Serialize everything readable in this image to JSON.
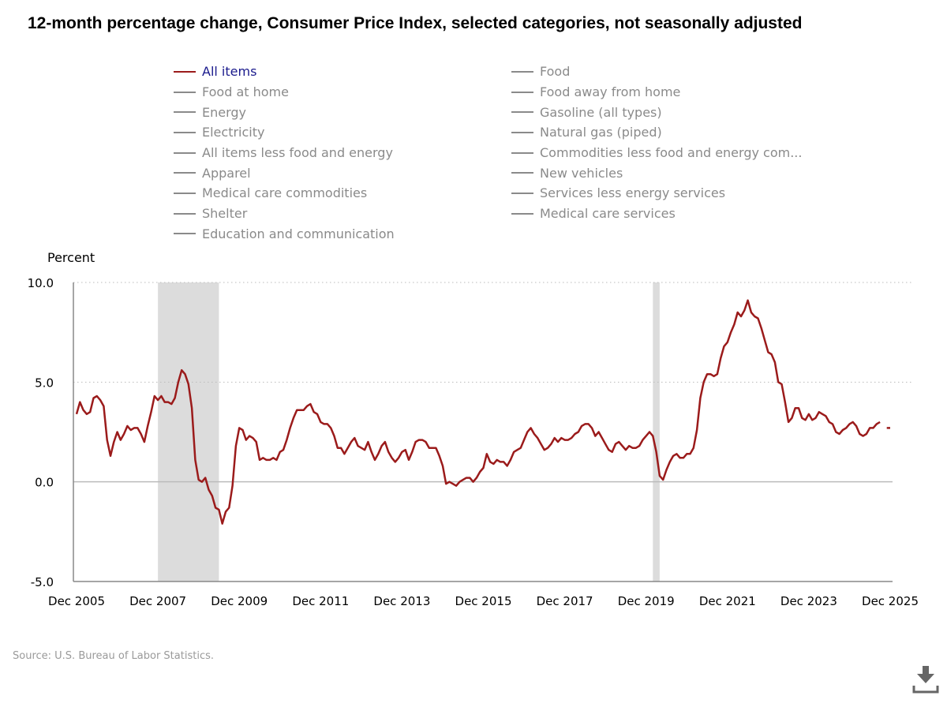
{
  "title": "12-month percentage change, Consumer Price Index, selected categories, not seasonally adjusted",
  "legend": {
    "left": [
      "All items",
      "Food at home",
      "Energy",
      "Electricity",
      "All items less food and energy",
      "Apparel",
      "Medical care commodities",
      "Shelter",
      "Education and communication"
    ],
    "right": [
      "Food",
      "Food away from home",
      "Gasoline (all types)",
      "Natural gas (piped)",
      "Commodities less food and energy com...",
      "New vehicles",
      "Services less energy services",
      "Medical care services"
    ]
  },
  "source": "Source: U.S. Bureau of Labor Statistics.",
  "colors": {
    "series": "#9b1b1b",
    "recession": "#dcdcdc",
    "legend_active": "#1a1a8c",
    "legend_inactive": "#8a8a8a"
  },
  "chart_data": {
    "type": "line",
    "title": "12-month percentage change, Consumer Price Index, selected categories, not seasonally adjusted",
    "ylabel": "Percent",
    "xlabel": "",
    "ylim": [
      -5,
      10
    ],
    "yticks": [
      -5,
      0,
      5,
      10
    ],
    "ytick_labels": [
      "-5.0",
      "0.0",
      "5.0",
      "10.0"
    ],
    "x_start": "Dec 2005",
    "x_end": "Dec 2025",
    "xtick_labels": [
      "Dec 2005",
      "Dec 2007",
      "Dec 2009",
      "Dec 2011",
      "Dec 2013",
      "Dec 2015",
      "Dec 2017",
      "Dec 2019",
      "Dec 2021",
      "Dec 2023",
      "Dec 2025"
    ],
    "grid": true,
    "recessions": [
      [
        "Dec 2007",
        "Jun 2009"
      ],
      [
        "Feb 2020",
        "Apr 2020"
      ]
    ],
    "series": [
      {
        "name": "All items",
        "frequency": "monthly",
        "values": [
          3.4,
          4.0,
          3.6,
          3.4,
          3.5,
          4.2,
          4.3,
          4.1,
          3.8,
          2.1,
          1.3,
          2.0,
          2.5,
          2.1,
          2.4,
          2.8,
          2.6,
          2.7,
          2.7,
          2.4,
          2.0,
          2.8,
          3.5,
          4.3,
          4.1,
          4.3,
          4.0,
          4.0,
          3.9,
          4.2,
          5.0,
          5.6,
          5.4,
          4.9,
          3.7,
          1.1,
          0.1,
          0.0,
          0.2,
          -0.4,
          -0.7,
          -1.3,
          -1.4,
          -2.1,
          -1.5,
          -1.3,
          -0.2,
          1.8,
          2.7,
          2.6,
          2.1,
          2.3,
          2.2,
          2.0,
          1.1,
          1.2,
          1.1,
          1.1,
          1.2,
          1.1,
          1.5,
          1.6,
          2.1,
          2.7,
          3.2,
          3.6,
          3.6,
          3.6,
          3.8,
          3.9,
          3.5,
          3.4,
          3.0,
          2.9,
          2.9,
          2.7,
          2.3,
          1.7,
          1.7,
          1.4,
          1.7,
          2.0,
          2.2,
          1.8,
          1.7,
          1.6,
          2.0,
          1.5,
          1.1,
          1.4,
          1.8,
          2.0,
          1.5,
          1.2,
          1.0,
          1.2,
          1.5,
          1.6,
          1.1,
          1.5,
          2.0,
          2.1,
          2.1,
          2.0,
          1.7,
          1.7,
          1.7,
          1.3,
          0.8,
          -0.1,
          0.0,
          -0.1,
          -0.2,
          0.0,
          0.1,
          0.2,
          0.2,
          0.0,
          0.2,
          0.5,
          0.7,
          1.4,
          1.0,
          0.9,
          1.1,
          1.0,
          1.0,
          0.8,
          1.1,
          1.5,
          1.6,
          1.7,
          2.1,
          2.5,
          2.7,
          2.4,
          2.2,
          1.9,
          1.6,
          1.7,
          1.9,
          2.2,
          2.0,
          2.2,
          2.1,
          2.1,
          2.2,
          2.4,
          2.5,
          2.8,
          2.9,
          2.9,
          2.7,
          2.3,
          2.5,
          2.2,
          1.9,
          1.6,
          1.5,
          1.9,
          2.0,
          1.8,
          1.6,
          1.8,
          1.7,
          1.7,
          1.8,
          2.1,
          2.3,
          2.5,
          2.3,
          1.5,
          0.3,
          0.1,
          0.6,
          1.0,
          1.3,
          1.4,
          1.2,
          1.2,
          1.4,
          1.4,
          1.7,
          2.6,
          4.2,
          5.0,
          5.4,
          5.4,
          5.3,
          5.4,
          6.2,
          6.8,
          7.0,
          7.5,
          7.9,
          8.5,
          8.3,
          8.6,
          9.1,
          8.5,
          8.3,
          8.2,
          7.7,
          7.1,
          6.5,
          6.4,
          6.0,
          5.0,
          4.9,
          4.0,
          3.0,
          3.2,
          3.7,
          3.7,
          3.2,
          3.1,
          3.4,
          3.1,
          3.2,
          3.5,
          3.4,
          3.3,
          3.0,
          2.9,
          2.5,
          2.4,
          2.6,
          2.7,
          2.9,
          3.0,
          2.8,
          2.4,
          2.3,
          2.4,
          2.7,
          2.7,
          2.9,
          3.0,
          null,
          2.7,
          2.7
        ]
      }
    ]
  }
}
